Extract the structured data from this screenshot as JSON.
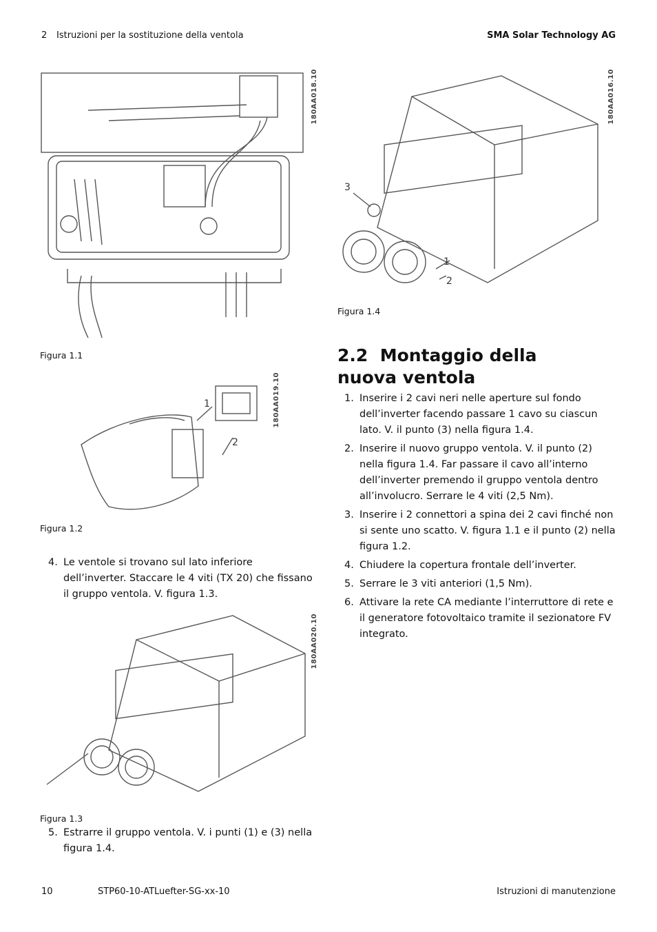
{
  "header": {
    "section_number": "2",
    "section_title": "Istruzioni per la sostituzione della ventola",
    "company": "SMA Solar Technology AG"
  },
  "figures": [
    {
      "caption": "Figura 1.1",
      "code": "180AA018.10"
    },
    {
      "caption": "Figura 1.2",
      "code": "180AA019.10",
      "callouts": [
        "1",
        "2"
      ]
    },
    {
      "caption": "Figura 1.3",
      "code": "180AA020.10"
    },
    {
      "caption": "Figura 1.4",
      "code": "180AA016.10",
      "callouts": [
        "3",
        "1",
        "2"
      ]
    }
  ],
  "left_steps": [
    {
      "number": "4.",
      "text": "Le ventole si trovano sul lato inferiore dell’inverter. Staccare le 4 viti (TX 20) che fissano il gruppo ventola. V. figura 1.3."
    },
    {
      "number": "5.",
      "text": "Estrarre il gruppo ventola. V. i punti (1) e (3) nella figura 1.4."
    }
  ],
  "section": {
    "number": "2.2",
    "title": "Montaggio della nuova ventola",
    "steps": [
      {
        "number": "1.",
        "text": "Inserire i 2 cavi neri nelle aperture sul fondo dell’inverter facendo passare 1 cavo su ciascun lato. V. il punto (3) nella figura 1.4."
      },
      {
        "number": "2.",
        "text": "Inserire il nuovo gruppo ventola. V. il punto (2) nella figura 1.4. Far passare il cavo all’interno dell’inverter premendo il gruppo ventola dentro all’involucro. Serrare le 4 viti (2,5 Nm)."
      },
      {
        "number": "3.",
        "text": "Inserire i 2 connettori a spina dei 2 cavi finché non si sente uno scatto. V. figura 1.1 e il punto (2) nella figura 1.2."
      },
      {
        "number": "4.",
        "text": "Chiudere la copertura frontale dell’inverter."
      },
      {
        "number": "5.",
        "text": "Serrare le 3 viti anteriori (1,5 Nm)."
      },
      {
        "number": "6.",
        "text": "Attivare la rete CA mediante l’interruttore di rete e il generatore fotovoltaico tramite il sezionatore FV integrato."
      }
    ]
  },
  "footer": {
    "page": "10",
    "document": "STP60-10-ATLuefter-SG-xx-10",
    "document_type": "Istruzioni di manutenzione"
  }
}
